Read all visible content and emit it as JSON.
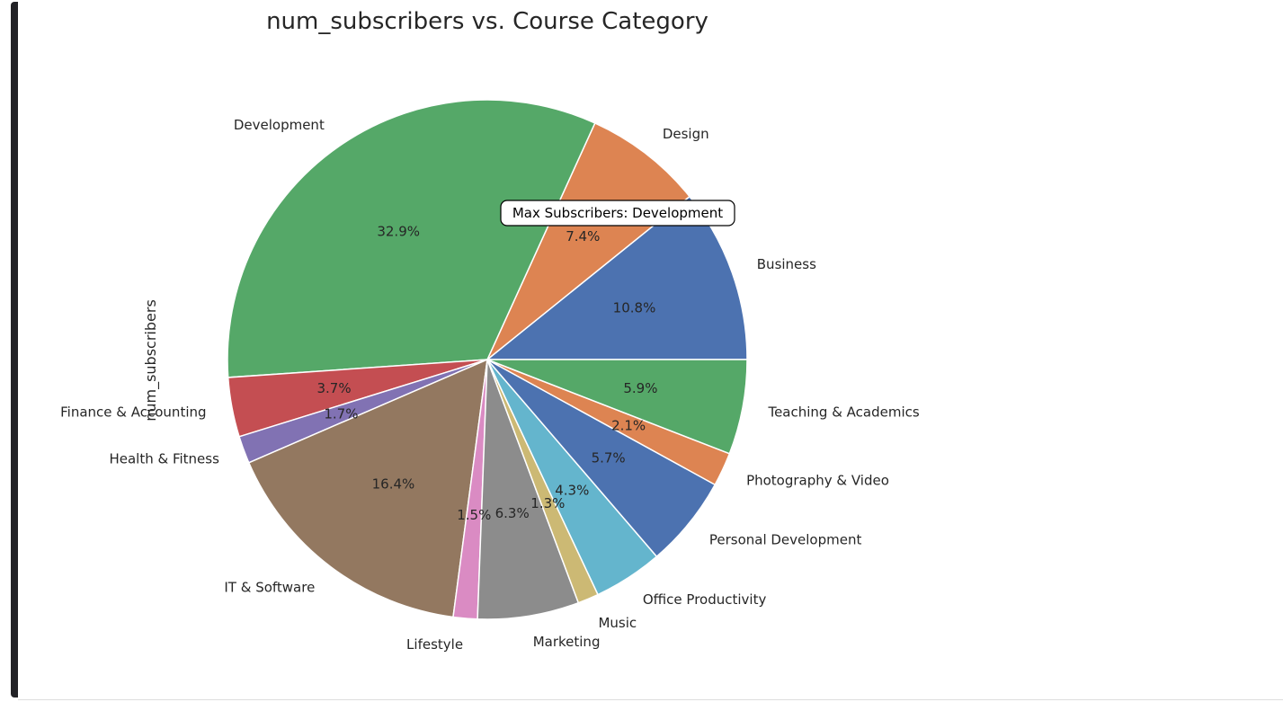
{
  "chart_data": {
    "type": "pie",
    "title": "num_subscribers vs. Course Category",
    "ylabel": "num_subscribers",
    "start_angle_deg": 0,
    "direction": "counterclockwise",
    "slices": [
      {
        "label": "Business",
        "percent": 10.8,
        "pct_label": "10.8%",
        "color": "#4c72b0"
      },
      {
        "label": "Design",
        "percent": 7.4,
        "pct_label": "7.4%",
        "color": "#dd8452"
      },
      {
        "label": "Development",
        "percent": 32.9,
        "pct_label": "32.9%",
        "color": "#55a868"
      },
      {
        "label": "Finance & Accounting",
        "percent": 3.7,
        "pct_label": "3.7%",
        "color": "#c44e52"
      },
      {
        "label": "Health & Fitness",
        "percent": 1.7,
        "pct_label": "1.7%",
        "color": "#8172b3"
      },
      {
        "label": "IT & Software",
        "percent": 16.4,
        "pct_label": "16.4%",
        "color": "#937860"
      },
      {
        "label": "Lifestyle",
        "percent": 1.5,
        "pct_label": "1.5%",
        "color": "#da8bc3"
      },
      {
        "label": "Marketing",
        "percent": 6.3,
        "pct_label": "6.3%",
        "color": "#8c8c8c"
      },
      {
        "label": "Music",
        "percent": 1.3,
        "pct_label": "1.3%",
        "color": "#ccb974"
      },
      {
        "label": "Office Productivity",
        "percent": 4.3,
        "pct_label": "4.3%",
        "color": "#64b5cd"
      },
      {
        "label": "Personal Development",
        "percent": 5.7,
        "pct_label": "5.7%",
        "color": "#4c72b0"
      },
      {
        "label": "Photography & Video",
        "percent": 2.1,
        "pct_label": "2.1%",
        "color": "#dd8452"
      },
      {
        "label": "Teaching & Academics",
        "percent": 5.9,
        "pct_label": "5.9%",
        "color": "#55a868"
      }
    ],
    "annotation": "Max Subscribers: Development"
  }
}
